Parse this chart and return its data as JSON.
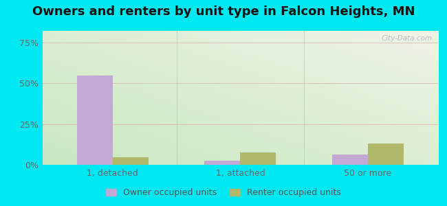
{
  "title": "Owners and renters by unit type in Falcon Heights, MN",
  "categories": [
    "1, detached",
    "1, attached",
    "50 or more"
  ],
  "owner_values": [
    54.5,
    2.5,
    6.5
  ],
  "renter_values": [
    4.5,
    7.5,
    13.0
  ],
  "owner_color": "#c4a8d4",
  "renter_color": "#b0b86a",
  "yticks": [
    0,
    25,
    50,
    75
  ],
  "ytick_labels": [
    "0%",
    "25%",
    "50%",
    "75%"
  ],
  "ylim": [
    0,
    82
  ],
  "bar_width": 0.28,
  "outer_bg": "#00e8f0",
  "legend_owner": "Owner occupied units",
  "legend_renter": "Renter occupied units",
  "watermark": "City-Data.com",
  "title_fontsize": 13,
  "tick_fontsize": 9,
  "legend_fontsize": 9,
  "xlim_left": -0.55,
  "xlim_right": 2.55
}
